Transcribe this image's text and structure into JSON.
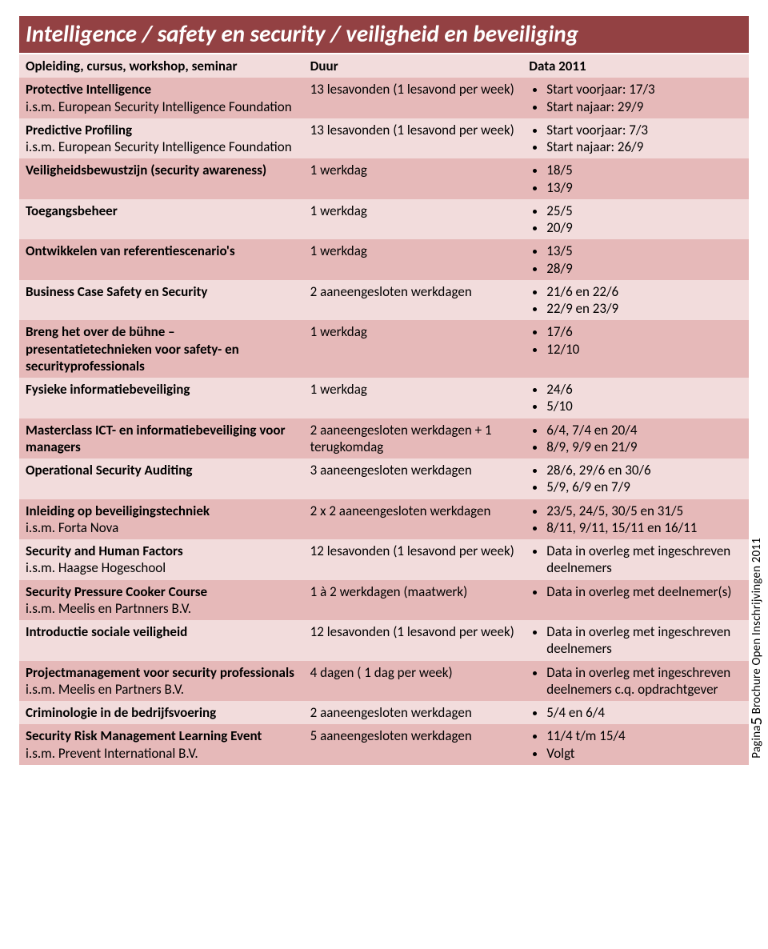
{
  "colors": {
    "title_bg": "#934143",
    "title_fg": "#ffffff",
    "band_even": "#f2dcdc",
    "band_odd": "#e6b9b9",
    "text": "#000000"
  },
  "title": "Intelligence / safety en security / veiligheid en beveiliging",
  "header": {
    "c1": "Opleiding, cursus, workshop, seminar",
    "c2": "Duur",
    "c3": "Data 2011"
  },
  "rows": [
    {
      "name": "Protective Intelligence",
      "sub": "i.s.m. European Security Intelligence Foundation",
      "dur": "13 lesavonden (1 lesavond per week)",
      "pts": [
        "Start voorjaar: 17/3",
        "Start najaar: 29/9"
      ]
    },
    {
      "name": "Predictive Profiling",
      "sub": "i.s.m. European Security Intelligence Foundation",
      "dur": "13 lesavonden (1 lesavond per week)",
      "pts": [
        "Start voorjaar: 7/3",
        "Start najaar: 26/9"
      ]
    },
    {
      "name": "Veiligheidsbewustzijn (security awareness)",
      "sub": "",
      "dur": "1 werkdag",
      "pts": [
        "18/5",
        "13/9"
      ]
    },
    {
      "name": "Toegangsbeheer",
      "sub": "",
      "dur": "1 werkdag",
      "pts": [
        "25/5",
        "20/9"
      ]
    },
    {
      "name": "Ontwikkelen van referentiescenario's",
      "sub": "",
      "dur": "1 werkdag",
      "pts": [
        "13/5",
        "28/9"
      ]
    },
    {
      "name": "Business Case Safety en Security",
      "sub": "",
      "dur": "2 aaneengesloten werkdagen",
      "pts": [
        "21/6 en 22/6",
        "22/9 en 23/9"
      ]
    },
    {
      "name": "Breng het over de bühne – presentatietechnieken voor safety- en securityprofessionals",
      "sub": "",
      "dur": "1 werkdag",
      "pts": [
        "17/6",
        "12/10"
      ]
    },
    {
      "name": "Fysieke informatiebeveiliging",
      "sub": "",
      "dur": "1 werkdag",
      "pts": [
        "24/6",
        "5/10"
      ]
    },
    {
      "name": "Masterclass ICT- en informatiebeveiliging voor managers",
      "sub": "",
      "dur": "2 aaneengesloten werkdagen + 1 terugkomdag",
      "pts": [
        "6/4, 7/4 en 20/4",
        "8/9, 9/9 en 21/9"
      ]
    },
    {
      "name": "Operational Security Auditing",
      "sub": "",
      "dur": "3 aaneengesloten werkdagen",
      "pts": [
        "28/6, 29/6 en 30/6",
        "5/9, 6/9 en 7/9"
      ]
    },
    {
      "name": "Inleiding op beveiligingstechniek",
      "sub": "i.s.m. Forta Nova",
      "dur": "2 x 2 aaneengesloten werkdagen",
      "pts": [
        "23/5, 24/5, 30/5 en 31/5",
        "8/11, 9/11, 15/11 en 16/11"
      ]
    },
    {
      "name": "Security and Human Factors",
      "sub": "i.s.m. Haagse Hogeschool",
      "dur": "12 lesavonden (1 lesavond per week)",
      "pts": [
        "Data in overleg met ingeschreven deelnemers"
      ]
    },
    {
      "name": "Security Pressure Cooker Course",
      "sub": "i.s.m. Meelis en Partnners B.V.",
      "dur": "1 à 2 werkdagen (maatwerk)",
      "pts": [
        "Data in overleg met deelnemer(s)"
      ]
    },
    {
      "name": "Introductie sociale veiligheid",
      "sub": "",
      "dur": "12 lesavonden (1 lesavond per week)",
      "pts": [
        "Data in overleg met ingeschreven deelnemers"
      ]
    },
    {
      "name": "Projectmanagement voor security professionals",
      "sub": "i.s.m. Meelis en Partners B.V.",
      "dur": "4 dagen ( 1 dag per week)",
      "pts": [
        "Data in overleg met ingeschreven deelnemers c.q. opdrachtgever"
      ]
    },
    {
      "name": "Criminologie in de bedrijfsvoering",
      "sub": "",
      "dur": "2 aaneengesloten werkdagen",
      "pts": [
        "5/4 en 6/4"
      ]
    },
    {
      "name": "Security Risk Management Learning Event",
      "sub": "i.s.m. Prevent International B.V.",
      "dur": "5 aaneengesloten werkdagen",
      "pts": [
        "11/4 t/m 15/4",
        "Volgt"
      ]
    }
  ],
  "side": {
    "prefix": "Pagina",
    "num": "5",
    "suffix": " Brochure Open Inschrijvingen 2011"
  }
}
